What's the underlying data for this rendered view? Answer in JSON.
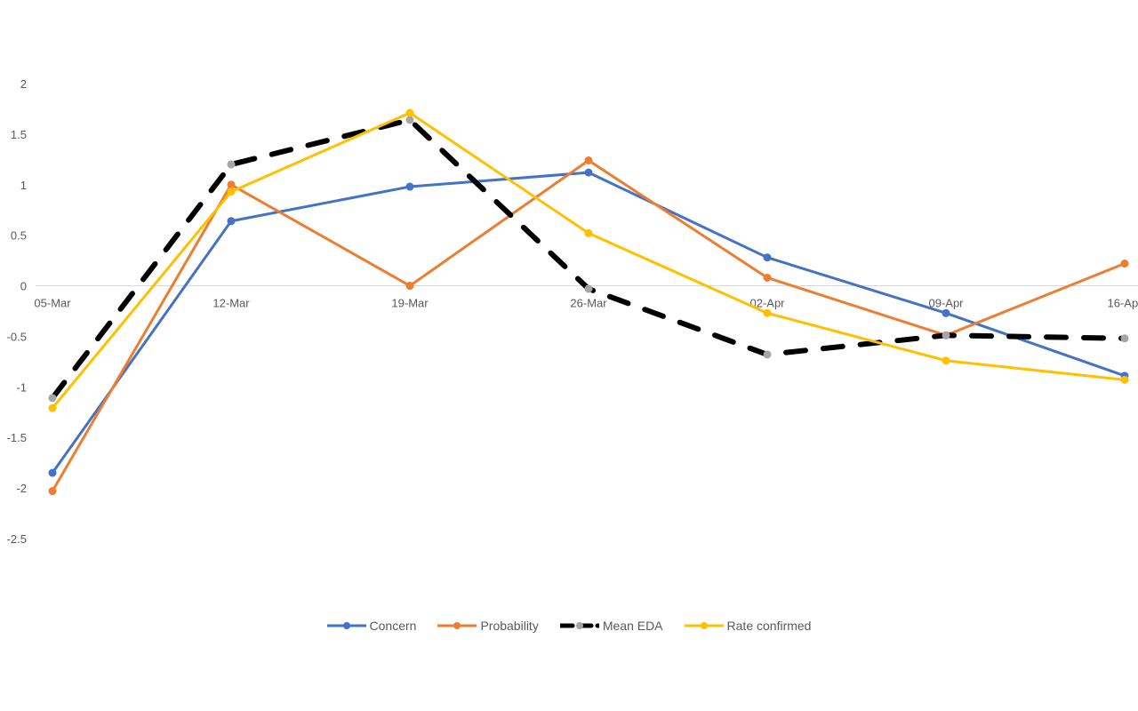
{
  "chart_data": {
    "type": "line",
    "categories": [
      "05-Mar",
      "12-Mar",
      "19-Mar",
      "26-Mar",
      "02-Apr",
      "09-Apr",
      "16-Apr"
    ],
    "y_ticks": [
      "2",
      "1.5",
      "1",
      "0.5",
      "0",
      "-0.5",
      "-1",
      "-1.5",
      "-2",
      "-2.5"
    ],
    "ylim": [
      -2.5,
      2
    ],
    "grid": false,
    "legend_position": "bottom",
    "series": [
      {
        "name": "Concern",
        "color": "#4472C4",
        "style": "solid",
        "marker_color": "#4472C4",
        "values": [
          -1.85,
          0.64,
          0.98,
          1.12,
          0.28,
          -0.27,
          -0.89
        ]
      },
      {
        "name": "Probability",
        "color": "#ED7D31",
        "style": "solid",
        "marker_color": "#ED7D31",
        "values": [
          -2.03,
          1.0,
          0.0,
          1.24,
          0.08,
          -0.49,
          0.22
        ]
      },
      {
        "name": "Mean EDA",
        "color": "#000000",
        "style": "dashed",
        "marker_color": "#A5A5A5",
        "values": [
          -1.11,
          1.2,
          1.64,
          -0.03,
          -0.68,
          -0.49,
          -0.52
        ]
      },
      {
        "name": "Rate confirmed",
        "color": "#FFC000",
        "style": "solid",
        "marker_color": "#FFC000",
        "values": [
          -1.21,
          0.93,
          1.71,
          0.52,
          -0.27,
          -0.74,
          -0.93
        ]
      }
    ]
  }
}
